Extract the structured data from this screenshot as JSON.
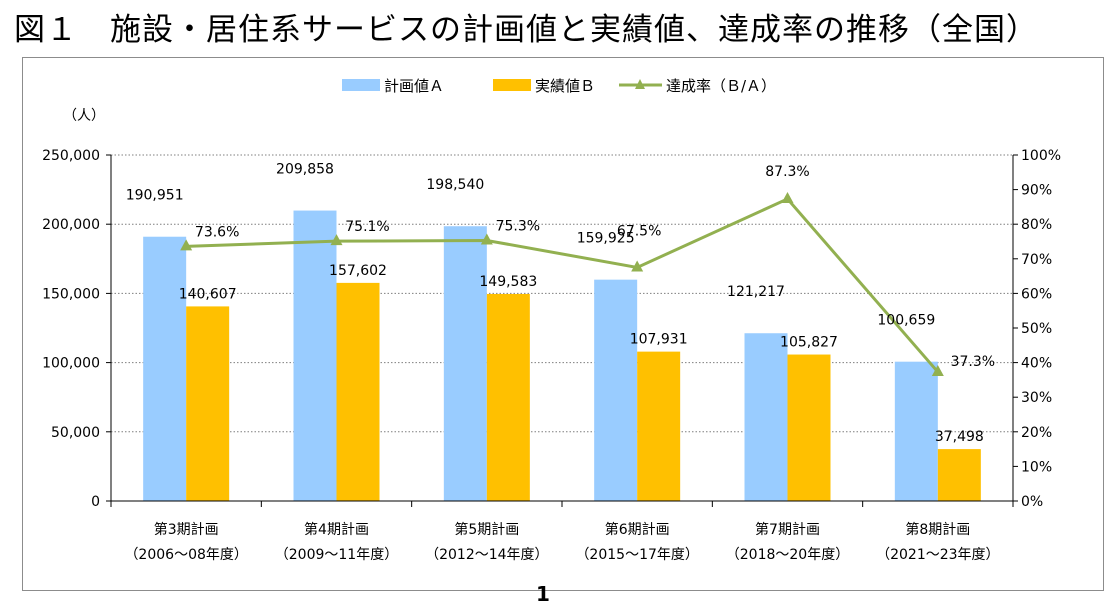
{
  "page": {
    "title": "図１　施設・居住系サービスの計画値と実績値、達成率の推移（全国）",
    "page_number": "1"
  },
  "colors": {
    "plan": "#99CCFF",
    "actual": "#FFC000",
    "rate": "#92B050",
    "grid": "#7f7f7f",
    "axis": "#000000"
  },
  "chart_data": {
    "type": "bar",
    "title": "",
    "ylabel": "（人）",
    "ylim": [
      0,
      250000
    ],
    "y_ticks": [
      0,
      50000,
      100000,
      150000,
      200000,
      250000
    ],
    "y_tick_labels": [
      "0",
      "50,000",
      "100,000",
      "150,000",
      "200,000",
      "250,000"
    ],
    "y2lim": [
      0,
      100
    ],
    "y2_ticks": [
      0,
      10,
      20,
      30,
      40,
      50,
      60,
      70,
      80,
      90,
      100
    ],
    "y2_tick_labels": [
      "0%",
      "10%",
      "20%",
      "30%",
      "40%",
      "50%",
      "60%",
      "70%",
      "80%",
      "90%",
      "100%"
    ],
    "categories": [
      {
        "line1": "第3期計画",
        "line2": "（2006～08年度）"
      },
      {
        "line1": "第4期計画",
        "line2": "（2009～11年度）"
      },
      {
        "line1": "第5期計画",
        "line2": "（2012～14年度）"
      },
      {
        "line1": "第6期計画",
        "line2": "（2015～17年度）"
      },
      {
        "line1": "第7期計画",
        "line2": "（2018～20年度）"
      },
      {
        "line1": "第8期計画",
        "line2": "（2021～23年度）"
      }
    ],
    "series": [
      {
        "name": "計画値Ａ",
        "type": "bar",
        "axis": "left",
        "values": [
          190951,
          209858,
          198540,
          159925,
          121217,
          100659
        ],
        "labels": [
          "190,951",
          "209,858",
          "198,540",
          "159,925",
          "121,217",
          "100,659"
        ]
      },
      {
        "name": "実績値Ｂ",
        "type": "bar",
        "axis": "left",
        "values": [
          140607,
          157602,
          149583,
          107931,
          105827,
          37498
        ],
        "labels": [
          "140,607",
          "157,602",
          "149,583",
          "107,931",
          "105,827",
          "37,498"
        ]
      },
      {
        "name": "達成率（Ｂ/Ａ）",
        "type": "line",
        "axis": "right",
        "values": [
          73.6,
          75.1,
          75.3,
          67.5,
          87.3,
          37.3
        ],
        "labels": [
          "73.6%",
          "75.1%",
          "75.3%",
          "67.5%",
          "87.3%",
          "37.3%"
        ]
      }
    ],
    "legend": "top-center",
    "grid": "horizontal-dotted"
  }
}
